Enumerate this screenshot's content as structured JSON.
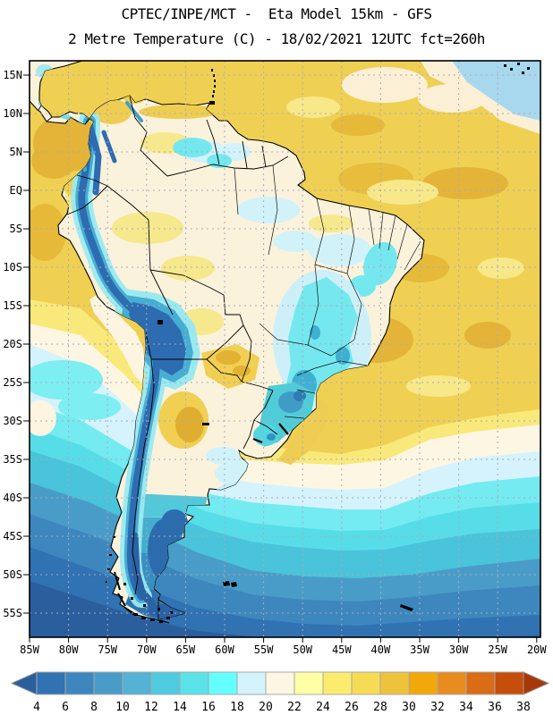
{
  "header": {
    "title_line1": "CPTEC/INPE/MCT -  Eta Model 15km - GFS",
    "title_line2": "2 Metre Temperature (C) - 18/02/2021 12UTC fct=260h"
  },
  "map": {
    "lat_ticks": [
      "15N",
      "10N",
      "5N",
      "EQ",
      "5S",
      "10S",
      "15S",
      "20S",
      "25S",
      "30S",
      "35S",
      "40S",
      "45S",
      "50S",
      "55S"
    ],
    "lon_ticks": [
      "85W",
      "80W",
      "75W",
      "70W",
      "65W",
      "60W",
      "55W",
      "50W",
      "45W",
      "40W",
      "35W",
      "30W",
      "25W",
      "20W"
    ]
  },
  "colorbar": {
    "tick_labels": [
      "4",
      "6",
      "8",
      "10",
      "12",
      "14",
      "16",
      "18",
      "20",
      "22",
      "24",
      "26",
      "28",
      "30",
      "32",
      "34",
      "36",
      "38"
    ],
    "palette": [
      "#2a5e9c",
      "#3072b2",
      "#3d87be",
      "#4a9cc8",
      "#54b2d4",
      "#4fcbdf",
      "#5ae2e9",
      "#66ffff",
      "#d5f3fd",
      "#fdf6e3",
      "#ffffa6",
      "#fcec6d",
      "#f6dc55",
      "#eec33c",
      "#f2a80b",
      "#e98c20",
      "#d96c14",
      "#c54e0b",
      "#a83808"
    ]
  }
}
